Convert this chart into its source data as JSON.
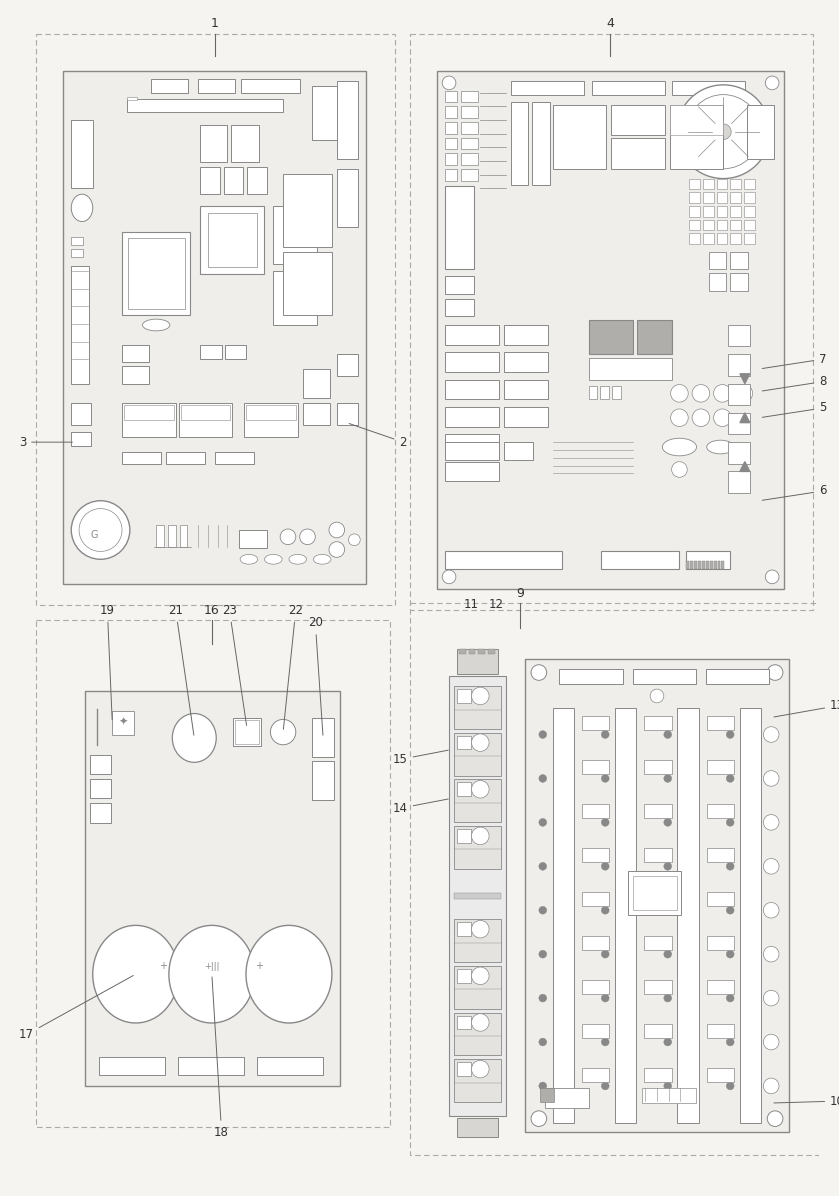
{
  "bg_color": "#f5f4f0",
  "lc": "#888888",
  "dc": "#aaaaaa",
  "fc_board": "#f0eeea",
  "fc_white": "#ffffff",
  "fc_gray": "#d8d6d2",
  "fc_dark": "#b0aeaa"
}
